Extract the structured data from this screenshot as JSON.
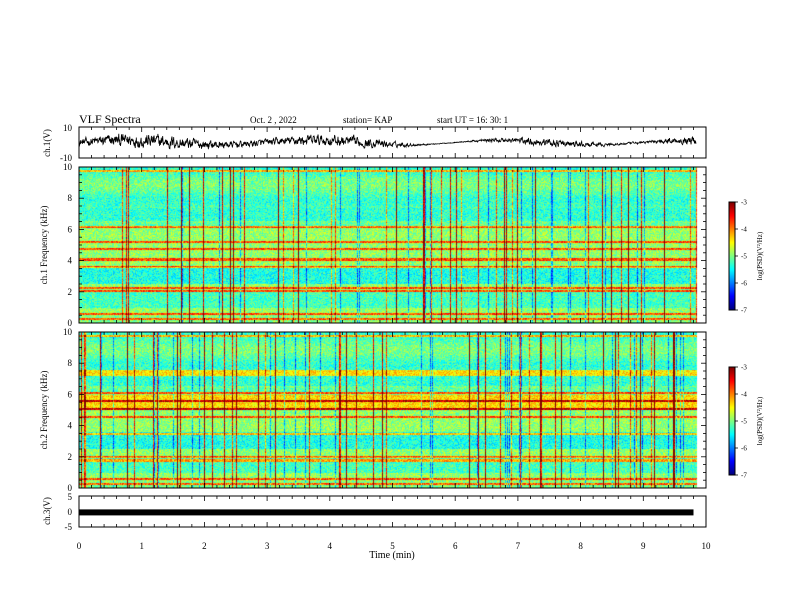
{
  "header": {
    "title": "VLF Spectra",
    "date": "Oct. 2 , 2022",
    "station": "station= KAP",
    "start": "start UT = 16: 30: 1"
  },
  "colorbar": {
    "label": "log(PSD)(V²/Hz)",
    "ticks": [
      "-3",
      "-4",
      "-5",
      "-6",
      "-7"
    ],
    "range": [
      -7,
      -3
    ]
  },
  "chart_data": [
    {
      "type": "line",
      "ylabel": "ch.1(V)",
      "ylim": [
        -10,
        10
      ],
      "yticks": [
        "10",
        "-10"
      ],
      "xlim": [
        0,
        10
      ],
      "series": [
        {
          "y_range": [
            -8,
            8
          ]
        }
      ]
    },
    {
      "type": "heatmap",
      "ylabel": "ch.1 Frequency (kHz)",
      "ylim": [
        0,
        10
      ],
      "yticks": [
        "0",
        "2",
        "4",
        "6",
        "8",
        "10"
      ],
      "xlim": [
        0,
        9.85
      ],
      "z_range": [
        -7,
        -3
      ]
    },
    {
      "type": "heatmap",
      "ylabel": "ch.2 Frequency (kHz)",
      "ylim": [
        0,
        10
      ],
      "yticks": [
        "0",
        "2",
        "4",
        "6",
        "8",
        "10"
      ],
      "xlim": [
        0,
        9.85
      ],
      "z_range": [
        -7,
        -3
      ]
    },
    {
      "type": "line",
      "ylabel": "ch.3(V)",
      "ylim": [
        -5,
        5
      ],
      "yticks": [
        "5",
        "0",
        "-5"
      ],
      "xlim": [
        0,
        10
      ],
      "series": [
        {
          "y_constant": -0.3
        }
      ],
      "xlabel": "Time (min)",
      "xticks": [
        "0",
        "1",
        "2",
        "3",
        "4",
        "5",
        "6",
        "7",
        "8",
        "9",
        "10"
      ]
    }
  ]
}
